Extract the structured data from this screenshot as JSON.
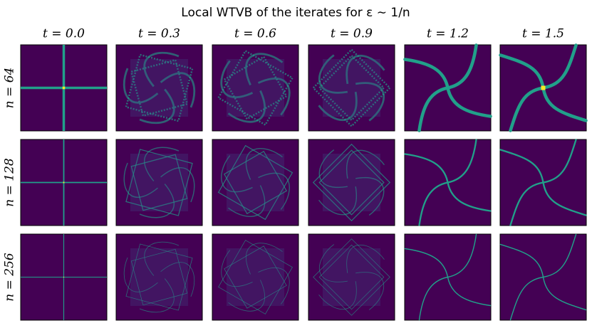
{
  "title": "Local WTVB of the iterates for ε ∼ 1/n",
  "columns": [
    "t = 0.0",
    "t = 0.3",
    "t = 0.6",
    "t = 0.9",
    "t = 1.2",
    "t = 1.5"
  ],
  "rows": [
    "n = 64",
    "n = 128",
    "n = 256"
  ]
}
